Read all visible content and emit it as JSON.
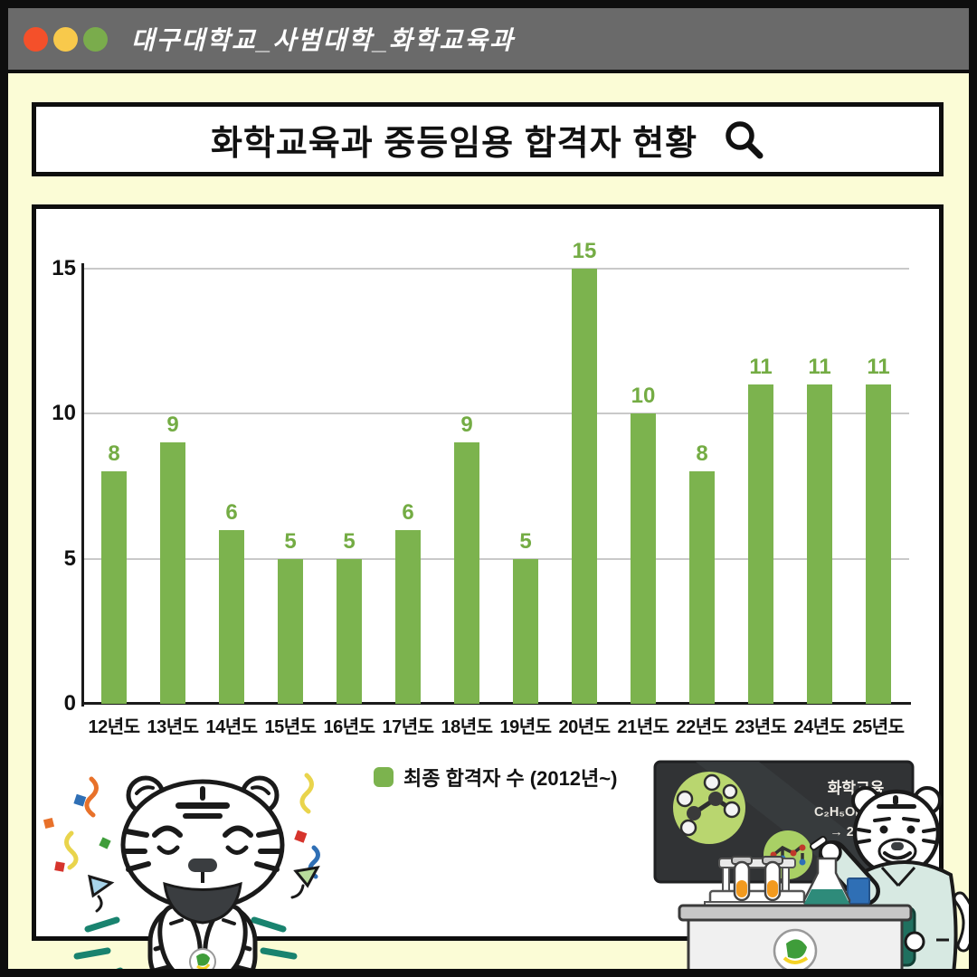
{
  "window": {
    "title": "대구대학교_사범대학_화학교육과",
    "controls": [
      {
        "name": "close",
        "color": "#f4502a"
      },
      {
        "name": "minimize",
        "color": "#f8c94b"
      },
      {
        "name": "zoom",
        "color": "#7aac4c"
      }
    ]
  },
  "header": {
    "title": "화학교육과 중등임용 합격자 현황",
    "icon": "search-icon"
  },
  "chart_data": {
    "type": "bar",
    "title": "화학교육과 중등임용 합격자 현황",
    "categories": [
      "12년도",
      "13년도",
      "14년도",
      "15년도",
      "16년도",
      "17년도",
      "18년도",
      "19년도",
      "20년도",
      "21년도",
      "22년도",
      "23년도",
      "24년도",
      "25년도"
    ],
    "values": [
      8,
      9,
      6,
      5,
      5,
      6,
      9,
      5,
      15,
      10,
      8,
      11,
      11,
      11
    ],
    "series_name": "최종 합격자 수 (2012년~)",
    "xlabel": "",
    "ylabel": "",
    "ylim": [
      0,
      15
    ],
    "yticks": [
      0,
      5,
      10,
      15
    ],
    "grid": true,
    "legend_position": "bottom-center",
    "bar_color": "#7cb34e",
    "value_label_color": "#74ac44"
  },
  "legend": {
    "label": "최종 합격자 수 (2012년~)",
    "swatch_color": "#7cb34e"
  },
  "blackboard": {
    "heading": "화학교육",
    "equation_line1": "C₂H₅OH + 3O₂",
    "equation_line2": "→ 2CO₂ + 3H₂O"
  },
  "colors": {
    "frame": "#0e0e0e",
    "background": "#fbfcd6",
    "titlebar": "#6a6a6a",
    "bar_green": "#7cb34e",
    "teal_accent": "#19836f",
    "blackboard": "#313335"
  }
}
